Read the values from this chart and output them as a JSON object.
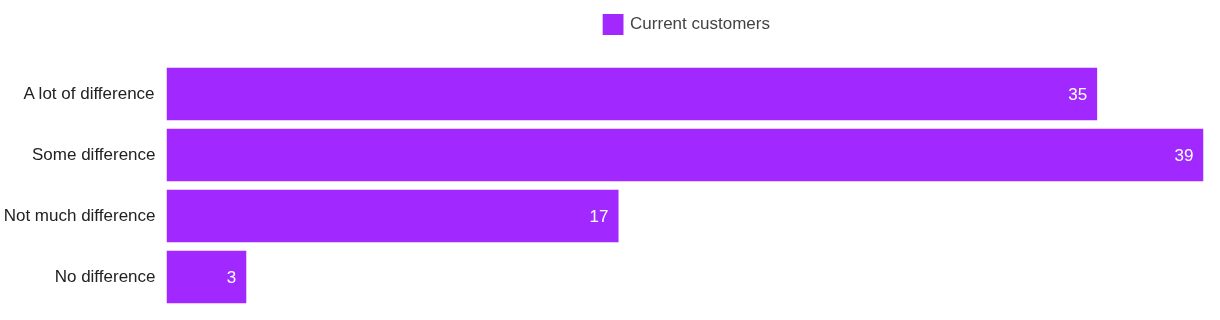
{
  "chart_data": {
    "type": "bar",
    "orientation": "horizontal",
    "categories": [
      "A lot of difference",
      "Some difference",
      "Not much difference",
      "No difference"
    ],
    "series": [
      {
        "name": "Current customers",
        "color": "#a128ff",
        "values": [
          35,
          39,
          17,
          3
        ]
      }
    ],
    "data_labels": true,
    "legend": "top",
    "grid": false,
    "tick_labels": "y"
  }
}
